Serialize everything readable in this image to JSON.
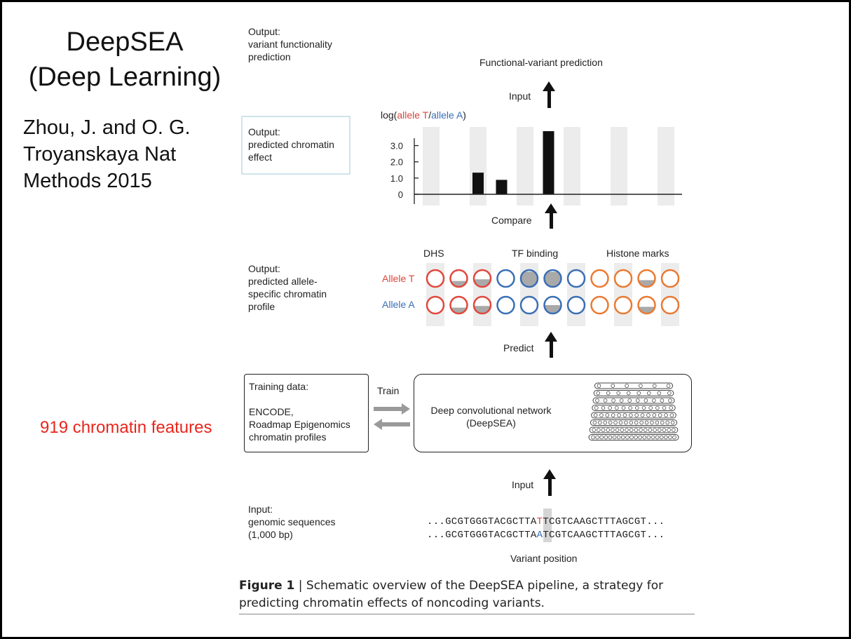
{
  "slide": {
    "title_line1": "DeepSEA",
    "title_line2": "(Deep Learning)",
    "citation_line1": "Zhou, J. and O. G.",
    "citation_line2": "Troyanskaya Nat",
    "citation_line3": "Methods 2015",
    "highlight_note": "919 chromatin features"
  },
  "figure": {
    "out1_line1": "Output:",
    "out1_line2": "variant functionality",
    "out1_line3": "prediction",
    "out2_line1": "Output:",
    "out2_line2": "predicted chromatin",
    "out2_line3": "effect",
    "out3_line1": "Output:",
    "out3_line2": "predicted allele-",
    "out3_line3": "specific chromatin",
    "out3_line4": "profile",
    "functional_prediction": "Functional-variant prediction",
    "input_label_top": "Input",
    "compare_label": "Compare",
    "predict_label": "Predict",
    "input_label_bottom": "Input",
    "train_label": "Train",
    "dhs_label": "DHS",
    "tf_label": "TF binding",
    "histone_label": "Histone marks",
    "allele_t_label": "Allele T",
    "allele_a_label": "Allele A",
    "training_line1": "Training data:",
    "training_line2": "ENCODE,",
    "training_line3": "Roadmap Epigenomics",
    "training_line4": "chromatin profiles",
    "network_line1": "Deep convolutional network",
    "network_line2": "(DeepSEA)",
    "input_seq_line1": "Input:",
    "input_seq_line2": "genomic sequences",
    "input_seq_line3": "(1,000 bp)",
    "seq_t_prefix": "...GCGTGGGTACGCTTA",
    "seq_t_base": "T",
    "seq_t_suffix": "TCGTCAAGCTTTAGCGT...",
    "seq_a_prefix": "...GCGTGGGTACGCTTA",
    "seq_a_base": "A",
    "seq_a_suffix": "TCGTCAAGCTTTAGCGT...",
    "variant_position": "Variant position",
    "caption_bold": "Figure 1",
    "caption_sep": " | ",
    "caption_line1": "Schematic overview of the DeepSEA pipeline, a strategy for",
    "caption_line2": "predicting chromatin effects of noncoding variants."
  },
  "chart_data": {
    "type": "bar",
    "ylabel_prefix": "log(",
    "ylabel_t": "allele T",
    "ylabel_slash": "/",
    "ylabel_a": "allele A",
    "ylabel_suffix": ")",
    "yticks": [
      "3.0",
      "2.0",
      "1.0",
      "0"
    ],
    "ylim": [
      0,
      3.5
    ],
    "values": [
      0,
      0,
      1.2,
      0.8,
      0,
      3.5,
      0,
      0,
      0,
      0,
      0
    ]
  },
  "allele_profiles": {
    "colors": {
      "dhs": "#e0483c",
      "tf": "#3a6fb5",
      "histone": "#ea7a32",
      "fill": "#a9a9a9"
    },
    "groups": [
      "dhs",
      "dhs",
      "dhs",
      "tf",
      "tf",
      "tf",
      "tf",
      "histone",
      "histone",
      "histone",
      "histone"
    ],
    "allele_t_fill": [
      0,
      0.35,
      0.45,
      0,
      0.9,
      0.9,
      0,
      0,
      0,
      0.4,
      0
    ],
    "allele_a_fill": [
      0,
      0.35,
      0.45,
      0,
      0,
      0.5,
      0,
      0,
      0,
      0.4,
      0
    ]
  }
}
